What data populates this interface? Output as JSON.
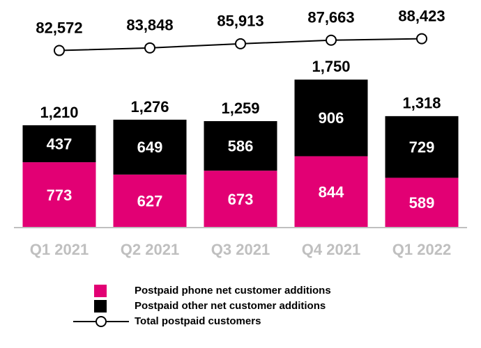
{
  "chart_data": {
    "type": "bar",
    "categories": [
      "Q1 2021",
      "Q2 2021",
      "Q3 2021",
      "Q4 2021",
      "Q1 2022"
    ],
    "stacked": true,
    "series": [
      {
        "name": "Postpaid phone net customer additions",
        "color": "#e20074",
        "values": [
          773,
          627,
          673,
          844,
          589
        ]
      },
      {
        "name": "Postpaid other net customer additions",
        "color": "#000000",
        "values": [
          437,
          649,
          586,
          906,
          729
        ]
      },
      {
        "name": "Total postpaid customers",
        "type": "line",
        "axis": "y2",
        "color": "#000000",
        "values": [
          82572,
          83848,
          85913,
          87663,
          88423
        ],
        "value_labels": [
          "82,572",
          "83,848",
          "85,913",
          "87,663",
          "88,423"
        ]
      }
    ],
    "totals": {
      "values": [
        1210,
        1276,
        1259,
        1750,
        1318
      ],
      "value_labels": [
        "1,210",
        "1,276",
        "1,259",
        "1,750",
        "1,318"
      ]
    },
    "ylim": [
      0,
      2000
    ],
    "y2lim": [
      80000,
      90000
    ]
  }
}
